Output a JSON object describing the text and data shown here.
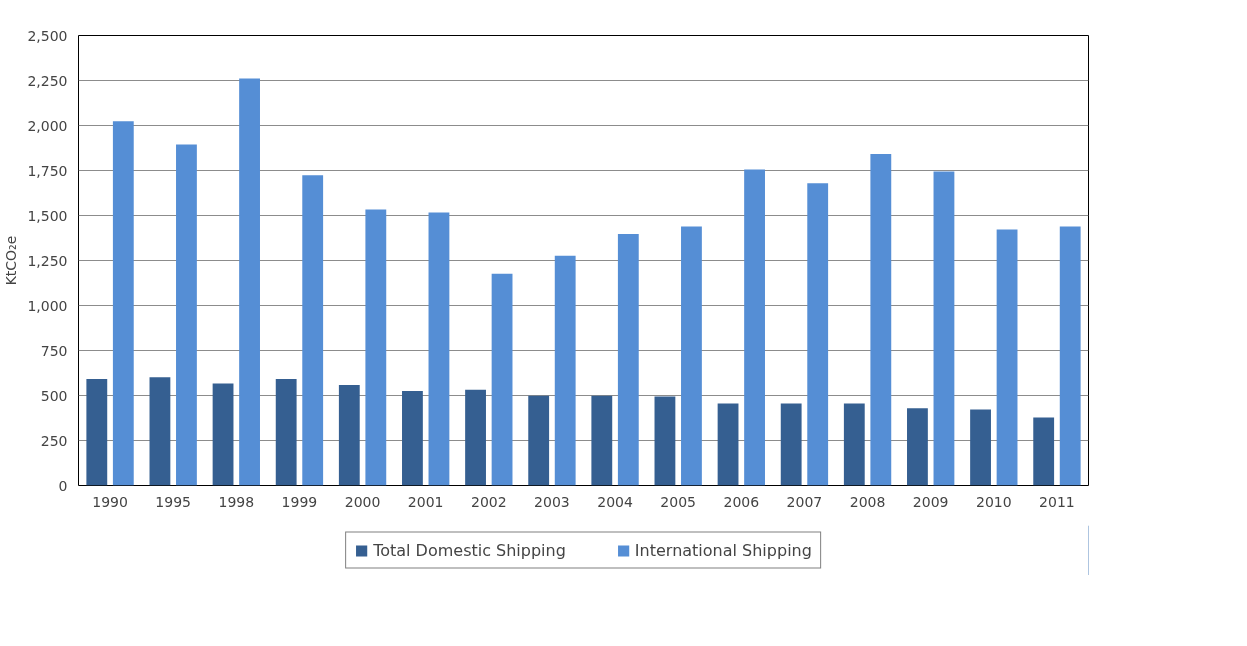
{
  "chart_data": {
    "type": "bar",
    "ylabel": "KtCO₂e",
    "categories": [
      "1990",
      "1995",
      "1998",
      "1999",
      "2000",
      "2001",
      "2002",
      "2003",
      "2004",
      "2005",
      "2006",
      "2007",
      "2008",
      "2009",
      "2010",
      "2011"
    ],
    "series": [
      {
        "name": "Total Domestic Shipping",
        "color": "#355f91",
        "values": [
          592,
          601,
          567,
          592,
          559,
          525,
          532,
          498,
          498,
          494,
          456,
          456,
          456,
          429,
          422,
          378
        ]
      },
      {
        "name": "International Shipping",
        "color": "#558ed5",
        "values": [
          2023,
          1895,
          2261,
          1723,
          1534,
          1517,
          1176,
          1277,
          1397,
          1439,
          1756,
          1679,
          1842,
          1744,
          1422,
          1439
        ]
      }
    ],
    "ylim": [
      0,
      2500
    ],
    "yticks": [
      {
        "value": 0,
        "label": "0"
      },
      {
        "value": 250,
        "label": "250"
      },
      {
        "value": 500,
        "label": "500"
      },
      {
        "value": 750,
        "label": "750"
      },
      {
        "value": 1000,
        "label": "1,000"
      },
      {
        "value": 1250,
        "label": "1,250"
      },
      {
        "value": 1500,
        "label": "1,500"
      },
      {
        "value": 1750,
        "label": "1,750"
      },
      {
        "value": 2000,
        "label": "2,000"
      },
      {
        "value": 2250,
        "label": "2,250"
      },
      {
        "value": 2500,
        "label": "2,500"
      }
    ],
    "grid": "y",
    "legend": "bottom"
  }
}
